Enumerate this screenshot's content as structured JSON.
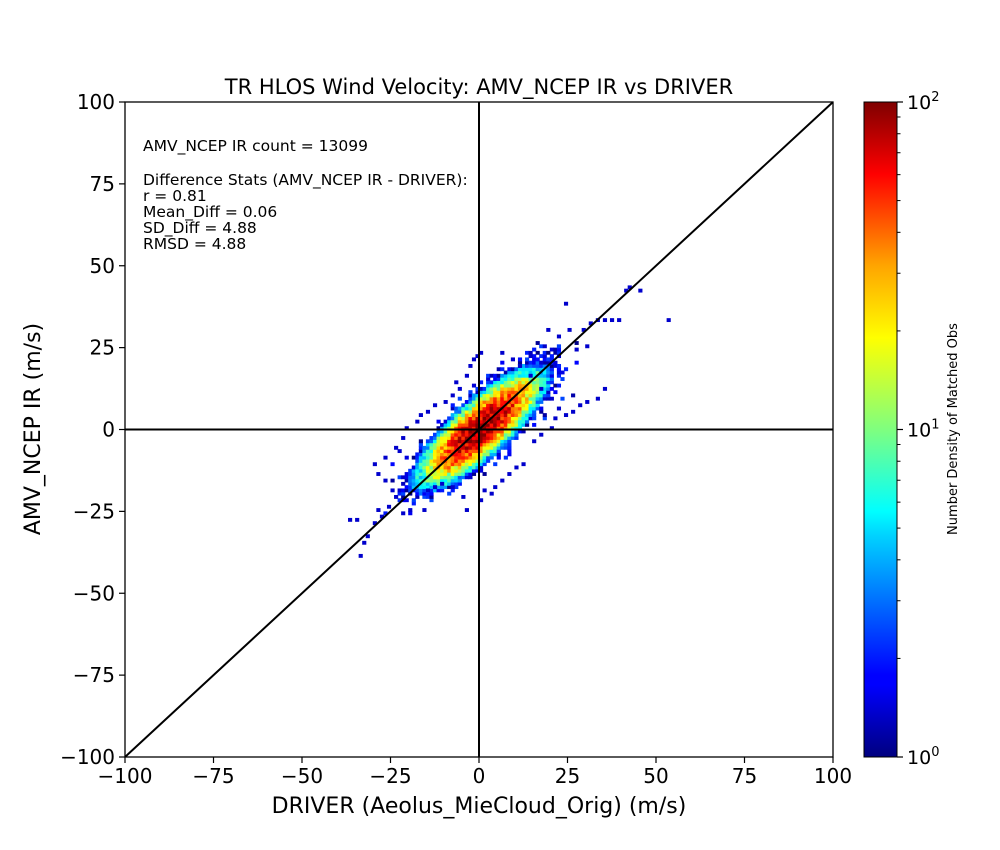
{
  "chart_data": {
    "type": "heatmap",
    "title": "TR HLOS Wind Velocity: AMV_NCEP IR vs DRIVER",
    "xlabel": "DRIVER (Aeolus_MieCloud_Orig) (m/s)",
    "ylabel": "AMV_NCEP IR (m/s)",
    "xlim": [
      -100,
      100
    ],
    "ylim": [
      -100,
      100
    ],
    "x_ticks": [
      -100,
      -75,
      -50,
      -25,
      0,
      25,
      50,
      75,
      100
    ],
    "y_ticks": [
      -100,
      -75,
      -50,
      -25,
      0,
      25,
      50,
      75,
      100
    ],
    "x_tick_labels": [
      "−100",
      "−75",
      "−50",
      "−25",
      "0",
      "25",
      "50",
      "75",
      "100"
    ],
    "y_tick_labels": [
      "−100",
      "−75",
      "−50",
      "−25",
      "0",
      "25",
      "50",
      "75",
      "100"
    ],
    "grid": false,
    "reference_lines": [
      "y = x",
      "x = 0",
      "y = 0"
    ],
    "annotations": {
      "count": "AMV_NCEP IR count = 13099",
      "stats_header": "Difference Stats (AMV_NCEP IR - DRIVER):",
      "r": "r = 0.81",
      "mean_diff": "Mean_Diff = 0.06",
      "sd_diff": "SD_Diff = 4.88",
      "rmsd": "RMSD = 4.88"
    },
    "colorbar": {
      "label": "Number Density of Matched Obs",
      "scale": "log",
      "range": [
        1,
        100
      ],
      "ticks": [
        {
          "base": "10",
          "exp": "0"
        },
        {
          "base": "10",
          "exp": "1"
        },
        {
          "base": "10",
          "exp": "2"
        }
      ],
      "colormap": "jet"
    },
    "density": {
      "bin_size": 1,
      "peak_count": 100,
      "correlation": 0.81,
      "spread_along": 10,
      "spread_across": 3.2,
      "outliers": [
        [
          53,
          33
        ],
        [
          45,
          42
        ],
        [
          42,
          43
        ],
        [
          41,
          42
        ],
        [
          39,
          33
        ],
        [
          37,
          33
        ],
        [
          35,
          33
        ],
        [
          33,
          33
        ],
        [
          31,
          32
        ],
        [
          29,
          30
        ],
        [
          25,
          30
        ],
        [
          22,
          28
        ],
        [
          19,
          30
        ],
        [
          24,
          38
        ],
        [
          30,
          25
        ],
        [
          27,
          24
        ],
        [
          33,
          9
        ],
        [
          30,
          8
        ],
        [
          28,
          7
        ],
        [
          26,
          5
        ],
        [
          24,
          4
        ],
        [
          35,
          12
        ],
        [
          -34,
          -39
        ],
        [
          -33,
          -35
        ],
        [
          -32,
          -33
        ],
        [
          -37,
          -28
        ],
        [
          -35,
          -28
        ],
        [
          -30,
          -29
        ],
        [
          -28,
          -27
        ],
        [
          -29,
          -25
        ],
        [
          -26,
          -24
        ],
        [
          -22,
          -26
        ],
        [
          -20,
          -25
        ],
        [
          -16,
          -25
        ],
        [
          -24,
          -21
        ],
        [
          -25,
          -19
        ],
        [
          -27,
          -16
        ],
        [
          -29,
          -14
        ],
        [
          -30,
          -11
        ],
        [
          -27,
          -9
        ],
        [
          -24,
          -6
        ],
        [
          -23,
          -7
        ],
        [
          -22,
          -3
        ],
        [
          -21,
          0
        ],
        [
          -18,
          2
        ],
        [
          -17,
          4
        ],
        [
          -15,
          5
        ],
        [
          -13,
          7
        ],
        [
          -10,
          8
        ],
        [
          -8,
          10
        ],
        [
          -6,
          12
        ],
        [
          -7,
          14
        ],
        [
          -4,
          16
        ],
        [
          -3,
          19
        ],
        [
          -2,
          21
        ],
        [
          -1,
          22
        ],
        [
          0,
          23
        ],
        [
          3,
          -20
        ],
        [
          1,
          -19
        ],
        [
          0,
          -22
        ],
        [
          -4,
          -25
        ],
        [
          -5,
          -21
        ],
        [
          -8,
          -18
        ],
        [
          -11,
          -17
        ],
        [
          -13,
          -18
        ],
        [
          -15,
          -19
        ],
        [
          4,
          -18
        ],
        [
          6,
          -16
        ],
        [
          8,
          -14
        ],
        [
          10,
          -12
        ],
        [
          12,
          -11
        ],
        [
          15,
          -4
        ],
        [
          17,
          -2
        ],
        [
          20,
          0
        ],
        [
          21,
          3
        ],
        [
          22,
          6
        ],
        [
          20,
          9
        ],
        [
          17,
          12
        ],
        [
          14,
          16
        ],
        [
          11,
          19
        ],
        [
          9,
          21
        ],
        [
          6,
          23
        ],
        [
          17,
          20
        ],
        [
          14,
          22
        ],
        [
          22,
          22
        ],
        [
          18,
          25
        ]
      ]
    }
  }
}
